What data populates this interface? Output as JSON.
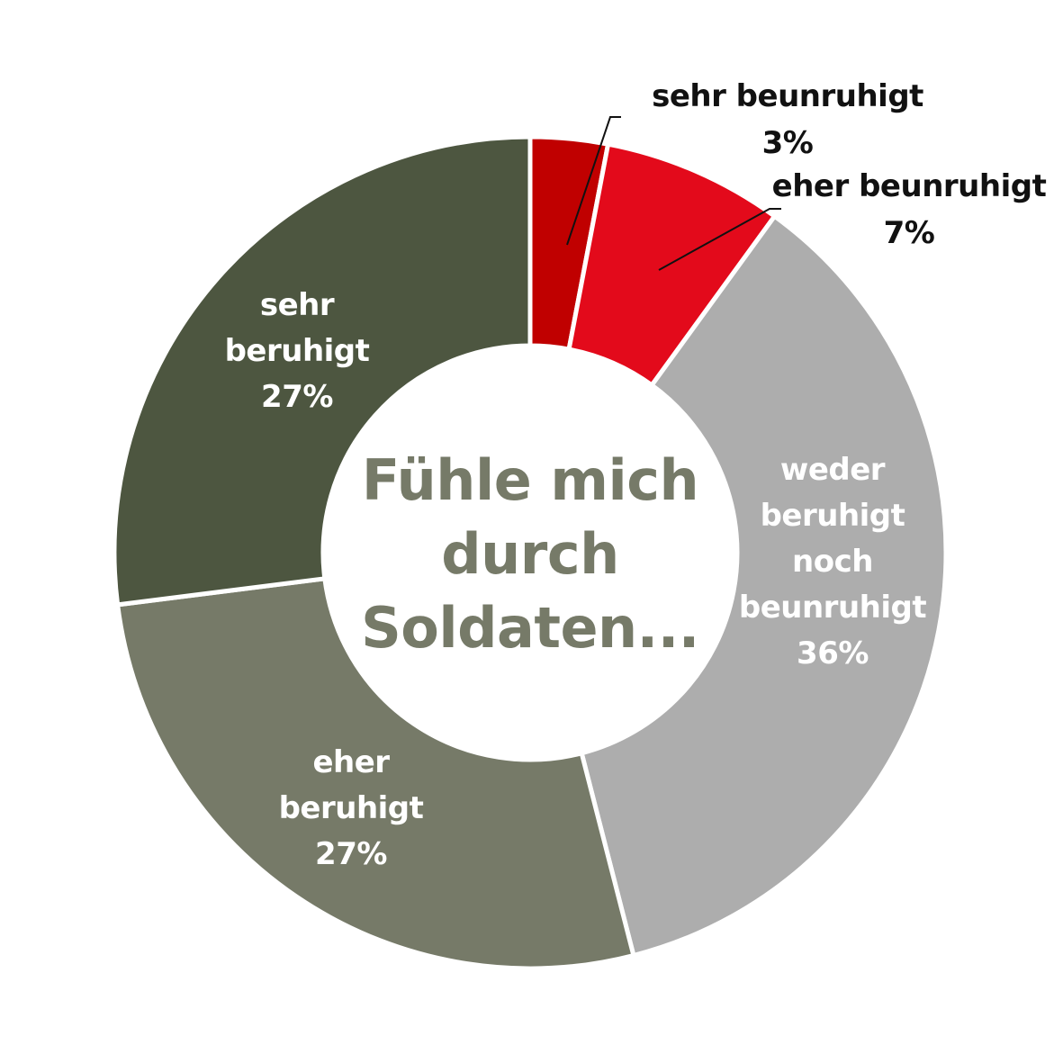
{
  "chart_data": {
    "type": "pie",
    "donut": true,
    "center_text": [
      "Fühle mich",
      "durch",
      "Soldaten..."
    ],
    "slices": [
      {
        "name_lines": [
          "sehr beunruhigt"
        ],
        "label": "3%",
        "value": 3,
        "color": "#c00000",
        "label_placement": "outside"
      },
      {
        "name_lines": [
          "eher beunruhigt"
        ],
        "label": "7%",
        "value": 7,
        "color": "#e30a1b",
        "label_placement": "outside"
      },
      {
        "name_lines": [
          "weder",
          "beruhigt",
          "noch",
          "beunruhigt"
        ],
        "label": "36%",
        "value": 36,
        "color": "#adadad",
        "label_placement": "inside"
      },
      {
        "name_lines": [
          "eher",
          "beruhigt"
        ],
        "label": "27%",
        "value": 27,
        "color": "#767a68",
        "label_placement": "inside"
      },
      {
        "name_lines": [
          "sehr",
          "beruhigt"
        ],
        "label": "27%",
        "value": 27,
        "color": "#4d5640",
        "label_placement": "inside"
      }
    ]
  }
}
